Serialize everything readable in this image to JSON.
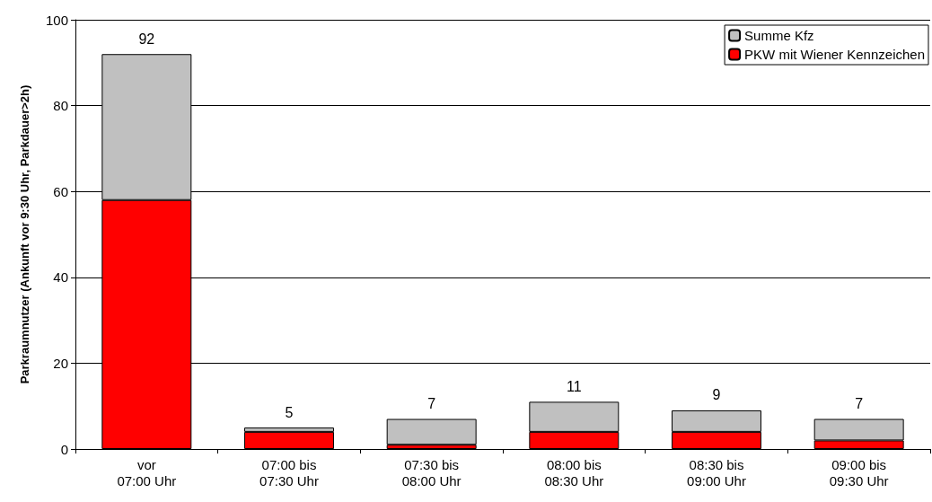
{
  "chart_data": {
    "type": "bar",
    "stacked": true,
    "ylabel": "Parkraumnutzer (Ankunft vor 9:30 Uhr, Parkdauer>2h)",
    "categories": [
      "vor\n07:00 Uhr",
      "07:00 bis\n07:30 Uhr",
      "07:30 bis\n08:00 Uhr",
      "08:00 bis\n08:30 Uhr",
      "08:30 bis\n09:00 Uhr",
      "09:00 bis\n09:30 Uhr"
    ],
    "series": [
      {
        "name": "PKW mit Wiener Kennzeichen",
        "color": "#ff0000",
        "values": [
          58,
          4,
          1,
          4,
          4,
          2
        ]
      },
      {
        "name": "Summe Kfz",
        "color": "#c0c0c0",
        "values": [
          34,
          1,
          6,
          7,
          5,
          5
        ]
      }
    ],
    "totals": [
      "92",
      "5",
      "7",
      "11",
      "9",
      "7"
    ],
    "ylim": [
      0,
      100
    ],
    "yticks": [
      0,
      20,
      40,
      60,
      80,
      100
    ],
    "grid": "y",
    "legend": "top right"
  }
}
